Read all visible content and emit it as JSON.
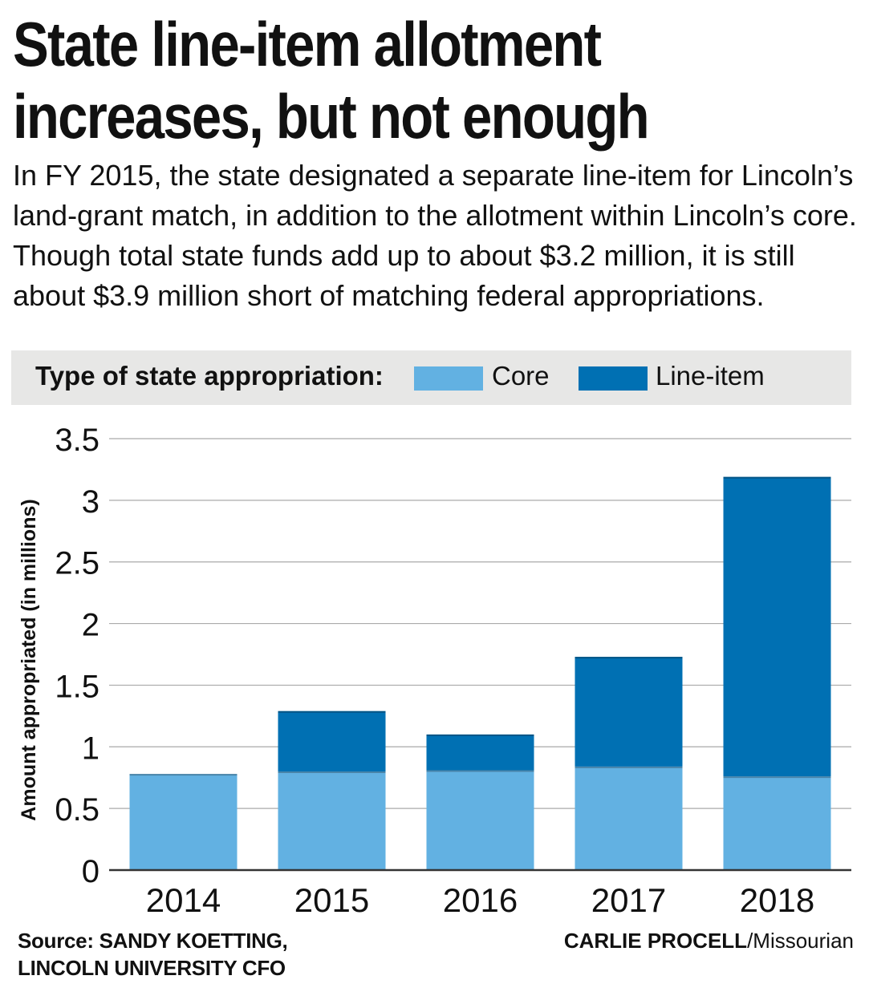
{
  "header": {
    "title_line1": "State line-item allotment",
    "title_line2": "increases, but not enough",
    "subtitle": "In FY 2015, the state designated a separate line-item for Lincoln’s land-grant match, in addition to the allotment within Lincoln’s core. Though total state funds add up to about $3.2 million, it is still about $3.9 million short of matching federal appropriations."
  },
  "legend": {
    "label": "Type of state appropriation:",
    "core": "Core",
    "line_item": "Line-item"
  },
  "colors": {
    "core": "#62b1e2",
    "line_item": "#0070b3",
    "legend_bg": "#e7e7e6",
    "grid": "#aaaaaa"
  },
  "chart_data": {
    "type": "bar",
    "stacked": true,
    "title": "State line-item allotment increases, but not enough",
    "categories": [
      "2014",
      "2015",
      "2016",
      "2017",
      "2018"
    ],
    "series": [
      {
        "name": "Core",
        "values": [
          0.78,
          0.8,
          0.81,
          0.84,
          0.76
        ]
      },
      {
        "name": "Line-item",
        "values": [
          0.0,
          0.49,
          0.29,
          0.89,
          2.43
        ]
      }
    ],
    "xlabel": "",
    "ylabel": "Amount appropriated (in millions)",
    "ylim": [
      0,
      3.5
    ],
    "yticks": [
      "0",
      "0.5",
      "1",
      "1.5",
      "2",
      "2.5",
      "3",
      "3.5"
    ],
    "grid": true,
    "legend_position": "top"
  },
  "footer": {
    "source_line1": "Source: SANDY KOETTING,",
    "source_line2": "LINCOLN UNIVERSITY CFO",
    "credit_name": "CARLIE PROCELL",
    "credit_org": "/Missourian"
  }
}
